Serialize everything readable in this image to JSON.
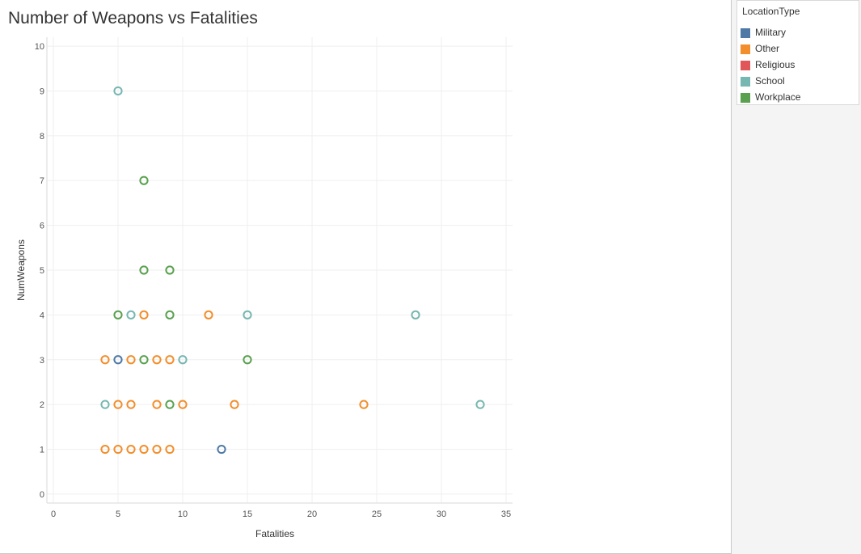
{
  "chart_data": {
    "type": "scatter",
    "title": "Number of Weapons vs Fatalities",
    "xlabel": "Fatalities",
    "ylabel": "NumWeapons",
    "xlim": [
      -0.5,
      35.5
    ],
    "ylim": [
      -0.2,
      10.2
    ],
    "xticks": [
      "0",
      "5",
      "10",
      "15",
      "20",
      "25",
      "30",
      "35"
    ],
    "yticks": [
      "0",
      "1",
      "2",
      "3",
      "4",
      "5",
      "6",
      "7",
      "8",
      "9",
      "10"
    ],
    "grid": true,
    "legend_position": "right",
    "legend_title": "LocationType",
    "series": [
      {
        "name": "Military",
        "color": "#4e79a7",
        "points": [
          [
            5,
            3
          ],
          [
            13,
            1
          ]
        ]
      },
      {
        "name": "Other",
        "color": "#f28e2b",
        "points": [
          [
            4,
            3
          ],
          [
            6,
            3
          ],
          [
            8,
            3
          ],
          [
            9,
            3
          ],
          [
            7,
            4
          ],
          [
            12,
            4
          ],
          [
            5,
            2
          ],
          [
            6,
            2
          ],
          [
            8,
            2
          ],
          [
            10,
            2
          ],
          [
            14,
            2
          ],
          [
            24,
            2
          ],
          [
            4,
            1
          ],
          [
            5,
            1
          ],
          [
            6,
            1
          ],
          [
            7,
            1
          ],
          [
            8,
            1
          ],
          [
            9,
            1
          ]
        ]
      },
      {
        "name": "Religious",
        "color": "#e15759",
        "points": []
      },
      {
        "name": "School",
        "color": "#76b7b2",
        "points": [
          [
            5,
            9
          ],
          [
            6,
            4
          ],
          [
            15,
            4
          ],
          [
            28,
            4
          ],
          [
            10,
            3
          ],
          [
            4,
            2
          ],
          [
            33,
            2
          ]
        ]
      },
      {
        "name": "Workplace",
        "color": "#59a14f",
        "points": [
          [
            7,
            7
          ],
          [
            7,
            5
          ],
          [
            9,
            5
          ],
          [
            5,
            4
          ],
          [
            9,
            4
          ],
          [
            7,
            3
          ],
          [
            15,
            3
          ],
          [
            9,
            2
          ]
        ]
      }
    ]
  }
}
